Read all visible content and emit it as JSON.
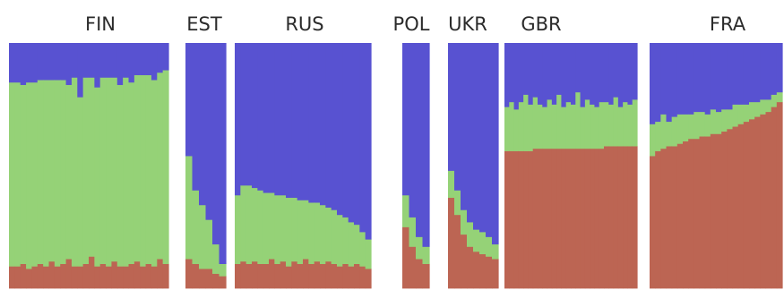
{
  "chart_data": {
    "type": "stacked-bar",
    "ylim": [
      0,
      1
    ],
    "grid": false,
    "legend": "none",
    "component_colors": [
      "#bc6553",
      "#95d277",
      "#5852d1"
    ],
    "panels": [
      {
        "label": "FIN",
        "bars": [
          [
            0.09,
            0.75,
            0.16
          ],
          [
            0.09,
            0.75,
            0.16
          ],
          [
            0.1,
            0.73,
            0.17
          ],
          [
            0.08,
            0.76,
            0.16
          ],
          [
            0.09,
            0.75,
            0.16
          ],
          [
            0.1,
            0.75,
            0.15
          ],
          [
            0.09,
            0.76,
            0.15
          ],
          [
            0.11,
            0.74,
            0.15
          ],
          [
            0.09,
            0.76,
            0.15
          ],
          [
            0.1,
            0.75,
            0.15
          ],
          [
            0.12,
            0.71,
            0.17
          ],
          [
            0.09,
            0.77,
            0.14
          ],
          [
            0.09,
            0.69,
            0.22
          ],
          [
            0.1,
            0.76,
            0.14
          ],
          [
            0.13,
            0.73,
            0.14
          ],
          [
            0.09,
            0.73,
            0.18
          ],
          [
            0.1,
            0.76,
            0.14
          ],
          [
            0.09,
            0.77,
            0.14
          ],
          [
            0.11,
            0.75,
            0.14
          ],
          [
            0.09,
            0.74,
            0.17
          ],
          [
            0.09,
            0.77,
            0.14
          ],
          [
            0.1,
            0.74,
            0.16
          ],
          [
            0.11,
            0.76,
            0.13
          ],
          [
            0.09,
            0.78,
            0.13
          ],
          [
            0.1,
            0.77,
            0.13
          ],
          [
            0.09,
            0.76,
            0.15
          ],
          [
            0.12,
            0.76,
            0.12
          ],
          [
            0.1,
            0.79,
            0.11
          ]
        ]
      },
      {
        "label": "EST",
        "bars": [
          [
            0.12,
            0.42,
            0.46
          ],
          [
            0.1,
            0.3,
            0.6
          ],
          [
            0.08,
            0.26,
            0.66
          ],
          [
            0.08,
            0.2,
            0.72
          ],
          [
            0.06,
            0.12,
            0.82
          ],
          [
            0.05,
            0.05,
            0.9
          ]
        ]
      },
      {
        "label": "RUS",
        "bars": [
          [
            0.1,
            0.28,
            0.62
          ],
          [
            0.11,
            0.31,
            0.58
          ],
          [
            0.1,
            0.32,
            0.58
          ],
          [
            0.11,
            0.3,
            0.59
          ],
          [
            0.1,
            0.3,
            0.6
          ],
          [
            0.1,
            0.29,
            0.61
          ],
          [
            0.12,
            0.27,
            0.61
          ],
          [
            0.1,
            0.28,
            0.62
          ],
          [
            0.11,
            0.27,
            0.62
          ],
          [
            0.09,
            0.28,
            0.63
          ],
          [
            0.11,
            0.26,
            0.63
          ],
          [
            0.1,
            0.26,
            0.64
          ],
          [
            0.12,
            0.24,
            0.64
          ],
          [
            0.1,
            0.25,
            0.65
          ],
          [
            0.11,
            0.24,
            0.65
          ],
          [
            0.1,
            0.24,
            0.66
          ],
          [
            0.11,
            0.22,
            0.67
          ],
          [
            0.1,
            0.22,
            0.68
          ],
          [
            0.09,
            0.21,
            0.7
          ],
          [
            0.1,
            0.19,
            0.71
          ],
          [
            0.09,
            0.18,
            0.73
          ],
          [
            0.1,
            0.16,
            0.74
          ],
          [
            0.09,
            0.14,
            0.77
          ],
          [
            0.08,
            0.12,
            0.8
          ]
        ]
      },
      {
        "label": "POL",
        "bars": [
          [
            0.25,
            0.13,
            0.62
          ],
          [
            0.17,
            0.12,
            0.71
          ],
          [
            0.12,
            0.09,
            0.79
          ],
          [
            0.1,
            0.07,
            0.83
          ]
        ]
      },
      {
        "label": "UKR",
        "bars": [
          [
            0.37,
            0.11,
            0.52
          ],
          [
            0.3,
            0.1,
            0.6
          ],
          [
            0.22,
            0.1,
            0.68
          ],
          [
            0.17,
            0.1,
            0.73
          ],
          [
            0.15,
            0.09,
            0.76
          ],
          [
            0.14,
            0.09,
            0.77
          ],
          [
            0.13,
            0.08,
            0.79
          ],
          [
            0.12,
            0.06,
            0.82
          ]
        ]
      },
      {
        "label": "GBR",
        "bars": [
          [
            0.56,
            0.18,
            0.26
          ],
          [
            0.56,
            0.2,
            0.24
          ],
          [
            0.56,
            0.17,
            0.27
          ],
          [
            0.56,
            0.2,
            0.24
          ],
          [
            0.56,
            0.23,
            0.21
          ],
          [
            0.56,
            0.19,
            0.25
          ],
          [
            0.57,
            0.21,
            0.22
          ],
          [
            0.57,
            0.18,
            0.25
          ],
          [
            0.57,
            0.17,
            0.26
          ],
          [
            0.57,
            0.2,
            0.23
          ],
          [
            0.57,
            0.18,
            0.25
          ],
          [
            0.57,
            0.22,
            0.21
          ],
          [
            0.57,
            0.17,
            0.26
          ],
          [
            0.57,
            0.19,
            0.24
          ],
          [
            0.57,
            0.18,
            0.25
          ],
          [
            0.57,
            0.23,
            0.2
          ],
          [
            0.57,
            0.17,
            0.26
          ],
          [
            0.57,
            0.2,
            0.23
          ],
          [
            0.57,
            0.18,
            0.25
          ],
          [
            0.57,
            0.17,
            0.26
          ],
          [
            0.57,
            0.19,
            0.24
          ],
          [
            0.58,
            0.18,
            0.24
          ],
          [
            0.58,
            0.17,
            0.25
          ],
          [
            0.58,
            0.2,
            0.22
          ],
          [
            0.58,
            0.16,
            0.26
          ],
          [
            0.58,
            0.18,
            0.24
          ],
          [
            0.58,
            0.17,
            0.25
          ],
          [
            0.58,
            0.19,
            0.23
          ]
        ]
      },
      {
        "label": "FRA",
        "bars": [
          [
            0.54,
            0.13,
            0.33
          ],
          [
            0.56,
            0.12,
            0.32
          ],
          [
            0.57,
            0.14,
            0.29
          ],
          [
            0.58,
            0.1,
            0.32
          ],
          [
            0.58,
            0.12,
            0.3
          ],
          [
            0.59,
            0.12,
            0.29
          ],
          [
            0.6,
            0.11,
            0.29
          ],
          [
            0.61,
            0.1,
            0.29
          ],
          [
            0.61,
            0.11,
            0.28
          ],
          [
            0.62,
            0.1,
            0.28
          ],
          [
            0.62,
            0.09,
            0.29
          ],
          [
            0.63,
            0.1,
            0.27
          ],
          [
            0.63,
            0.09,
            0.28
          ],
          [
            0.64,
            0.09,
            0.27
          ],
          [
            0.65,
            0.08,
            0.27
          ],
          [
            0.66,
            0.09,
            0.25
          ],
          [
            0.67,
            0.08,
            0.25
          ],
          [
            0.68,
            0.07,
            0.25
          ],
          [
            0.69,
            0.07,
            0.24
          ],
          [
            0.7,
            0.06,
            0.24
          ],
          [
            0.71,
            0.06,
            0.23
          ],
          [
            0.72,
            0.05,
            0.23
          ],
          [
            0.74,
            0.05,
            0.21
          ],
          [
            0.76,
            0.04,
            0.2
          ]
        ]
      }
    ]
  }
}
